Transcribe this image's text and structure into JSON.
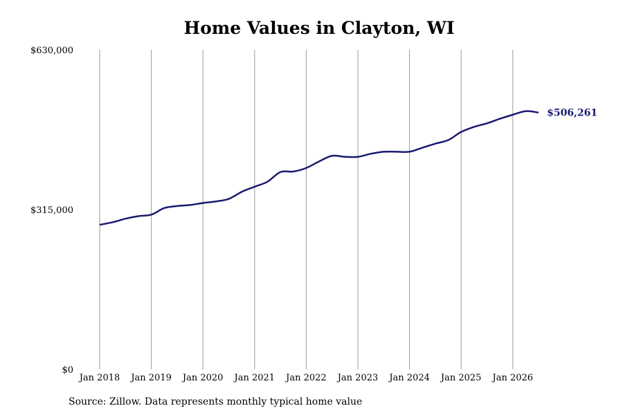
{
  "chart_data": {
    "type": "line",
    "title": "Home Values in Clayton, WI",
    "xlabel": "",
    "ylabel": "",
    "ylim": [
      0,
      630000
    ],
    "y_ticks": [
      0,
      315000,
      630000
    ],
    "y_tick_labels": [
      "$0",
      "$315,000",
      "$630,000"
    ],
    "x_tick_labels": [
      "Jan 2018",
      "Jan 2019",
      "Jan 2020",
      "Jan 2021",
      "Jan 2022",
      "Jan 2023",
      "Jan 2024",
      "Jan 2025",
      "Jan 2026"
    ],
    "x_ticks": [
      "2018-01",
      "2019-01",
      "2020-01",
      "2021-01",
      "2022-01",
      "2023-01",
      "2024-01",
      "2025-01",
      "2026-01"
    ],
    "grid": "vertical",
    "line_color": "#191970",
    "series": [
      {
        "x": [
          "2018-01",
          "2018-04",
          "2018-07",
          "2018-10",
          "2019-01",
          "2019-04",
          "2019-07",
          "2019-10",
          "2020-01",
          "2020-04",
          "2020-07",
          "2020-10",
          "2021-01",
          "2021-04",
          "2021-07",
          "2021-10",
          "2022-01",
          "2022-04",
          "2022-07",
          "2022-10",
          "2023-01",
          "2023-04",
          "2023-07",
          "2023-10",
          "2024-01",
          "2024-04",
          "2024-07",
          "2024-10",
          "2025-01",
          "2025-04",
          "2025-07",
          "2025-10",
          "2026-01",
          "2026-04",
          "2026-07"
        ],
        "values": [
          285000,
          290000,
          297000,
          302000,
          305000,
          318000,
          322000,
          324000,
          328000,
          331000,
          336000,
          350000,
          360000,
          370000,
          389000,
          390000,
          397000,
          410000,
          421000,
          419000,
          419000,
          425000,
          429000,
          429000,
          429000,
          437000,
          445000,
          452000,
          468000,
          478000,
          485000,
          494000,
          502000,
          509000,
          506261
        ]
      }
    ],
    "end_label": "$506,261",
    "source": "Source: Zillow. Data represents monthly typical home value"
  }
}
